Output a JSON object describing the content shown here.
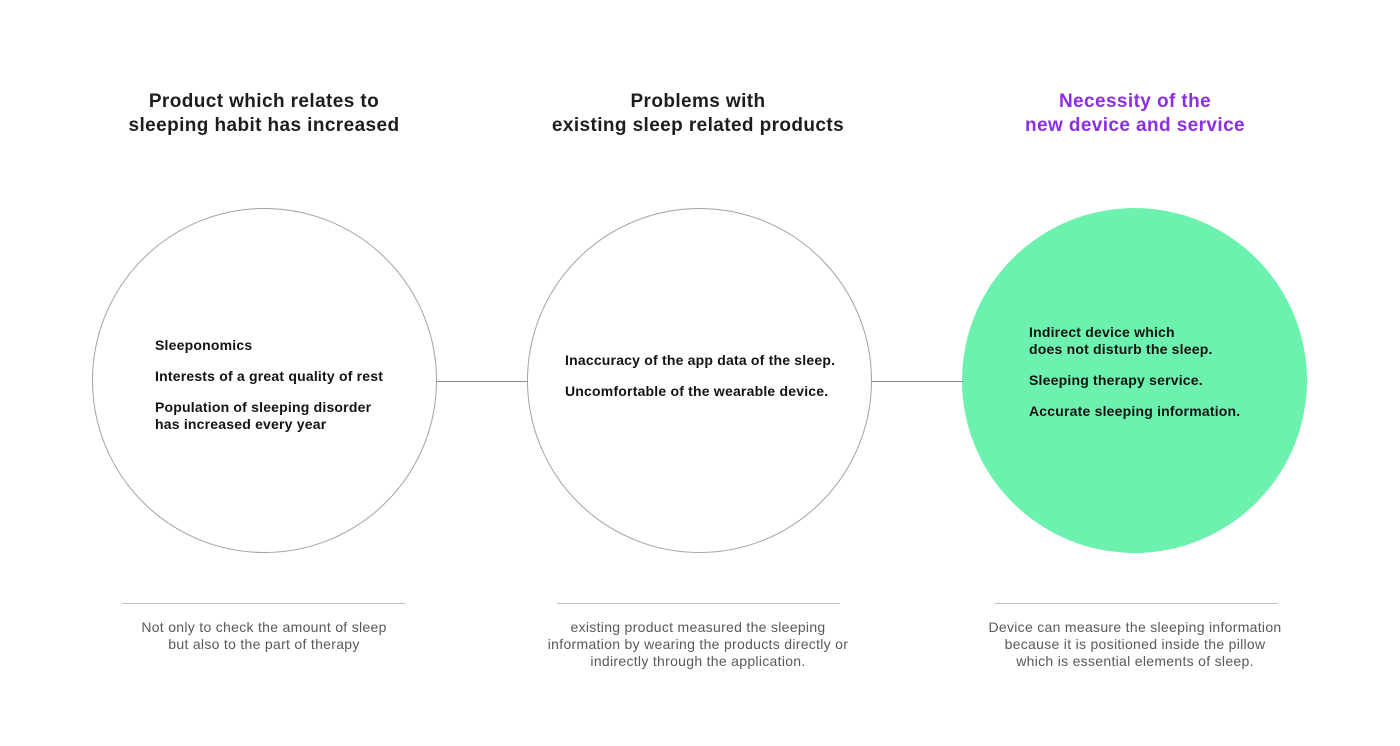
{
  "colors": {
    "heading_dark": "#1d1d1d",
    "accent_purple": "#8b2fe2",
    "accent_green": "#6cf1af",
    "caption_gray": "#595959",
    "line_gray": "#bdbdbd",
    "circle_border": "#a3a3a3",
    "connector_gray": "#8f8f8f"
  },
  "columns": [
    {
      "heading": "Product which relates to\nsleeping habit has increased",
      "circle_items": [
        "Sleeponomics",
        "Interests of a great quality of rest",
        "Population of sleeping disorder\nhas increased every year"
      ],
      "caption": "Not only to check the amount of sleep\nbut also to the part of therapy"
    },
    {
      "heading": "Problems with\nexisting sleep related products",
      "circle_items": [
        "Inaccuracy of the app data of the sleep.",
        "Uncomfortable of the wearable device."
      ],
      "caption": "existing product measured the sleeping\ninformation by wearing the products directly or\nindirectly through the application."
    },
    {
      "heading": "Necessity of the\nnew device and service",
      "circle_items": [
        "Indirect device which\ndoes not disturb the sleep.",
        "Sleeping therapy service.",
        "Accurate sleeping information."
      ],
      "caption": "Device can measure the sleeping information\nbecause it is positioned inside the pillow\nwhich is essential elements of sleep."
    }
  ]
}
